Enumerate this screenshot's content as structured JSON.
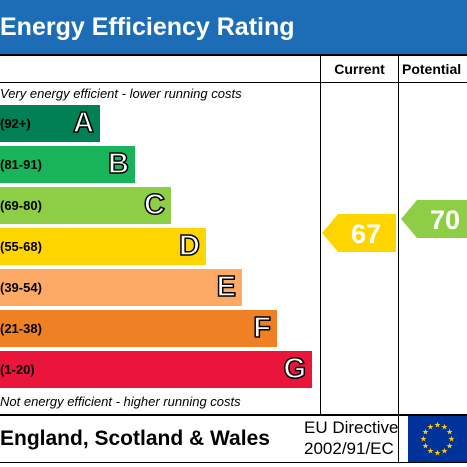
{
  "header": {
    "title": "Energy Efficiency Rating"
  },
  "columns": {
    "current": "Current",
    "potential": "Potential"
  },
  "notes": {
    "top": "Very energy efficient - lower running costs",
    "bottom": "Not energy efficient - higher running costs"
  },
  "bands": [
    {
      "letter": "A",
      "range": "(92+)",
      "color": "#008054"
    },
    {
      "letter": "B",
      "range": "(81-91)",
      "color": "#19b459"
    },
    {
      "letter": "C",
      "range": "(69-80)",
      "color": "#8dce46"
    },
    {
      "letter": "D",
      "range": "(55-68)",
      "color": "#ffd500"
    },
    {
      "letter": "E",
      "range": "(39-54)",
      "color": "#fcaa65"
    },
    {
      "letter": "F",
      "range": "(21-38)",
      "color": "#ef8023"
    },
    {
      "letter": "G",
      "range": "(1-20)",
      "color": "#e9153b"
    }
  ],
  "ratings": {
    "current": {
      "value": "67",
      "band": "D",
      "color": "#ffd500"
    },
    "potential": {
      "value": "70",
      "band": "C",
      "color": "#8dce46"
    }
  },
  "footer": {
    "country": "England, Scotland & Wales",
    "directive_line1": "EU Directive",
    "directive_line2": "2002/91/EC"
  },
  "colors": {
    "header": "#1c6db5",
    "eu_flag": "#003399",
    "eu_stars": "#ffcc00"
  }
}
